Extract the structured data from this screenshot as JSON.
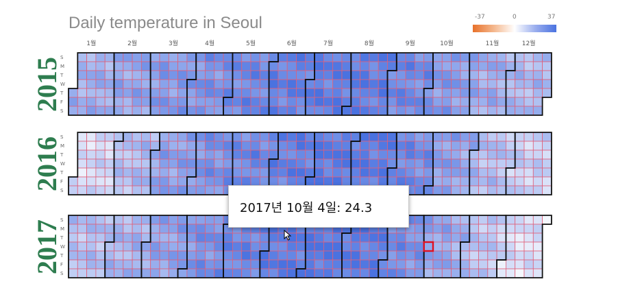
{
  "chart_data": {
    "type": "heatmap",
    "title": "Daily temperature in Seoul",
    "value_label": "Daily temperature",
    "color_scale": {
      "min": -37,
      "mid": 0,
      "max": 37,
      "min_color": "#e8712a",
      "mid_color": "#ffffff",
      "max_color": "#4a72e0",
      "cell_border_color": "#e0607a",
      "month_border_color": "#111111"
    },
    "legend": {
      "min_label": "-37",
      "mid_label": "0",
      "max_label": "37",
      "placement": "top-right"
    },
    "month_labels": [
      "1월",
      "2월",
      "3월",
      "4월",
      "5월",
      "6월",
      "7월",
      "8월",
      "9월",
      "10월",
      "11월",
      "12월"
    ],
    "day_labels": [
      "S",
      "M",
      "T",
      "W",
      "T",
      "F",
      "S"
    ],
    "years": [
      {
        "year": "2015",
        "monthly_values": [
          20,
          22,
          25,
          27,
          30,
          32,
          33,
          34,
          31,
          27,
          22,
          18
        ]
      },
      {
        "year": "2016",
        "monthly_values": [
          8,
          15,
          23,
          27,
          30,
          32,
          34,
          35,
          31,
          26,
          18,
          12
        ]
      },
      {
        "year": "2017",
        "monthly_values": [
          16,
          18,
          22,
          27,
          31,
          33,
          35,
          35,
          30,
          24,
          17,
          8
        ]
      }
    ],
    "selected": {
      "year": 2017,
      "month": 10,
      "day": 4,
      "value": 24.3
    },
    "tooltip": "2017년 10월 4일: 24.3"
  }
}
